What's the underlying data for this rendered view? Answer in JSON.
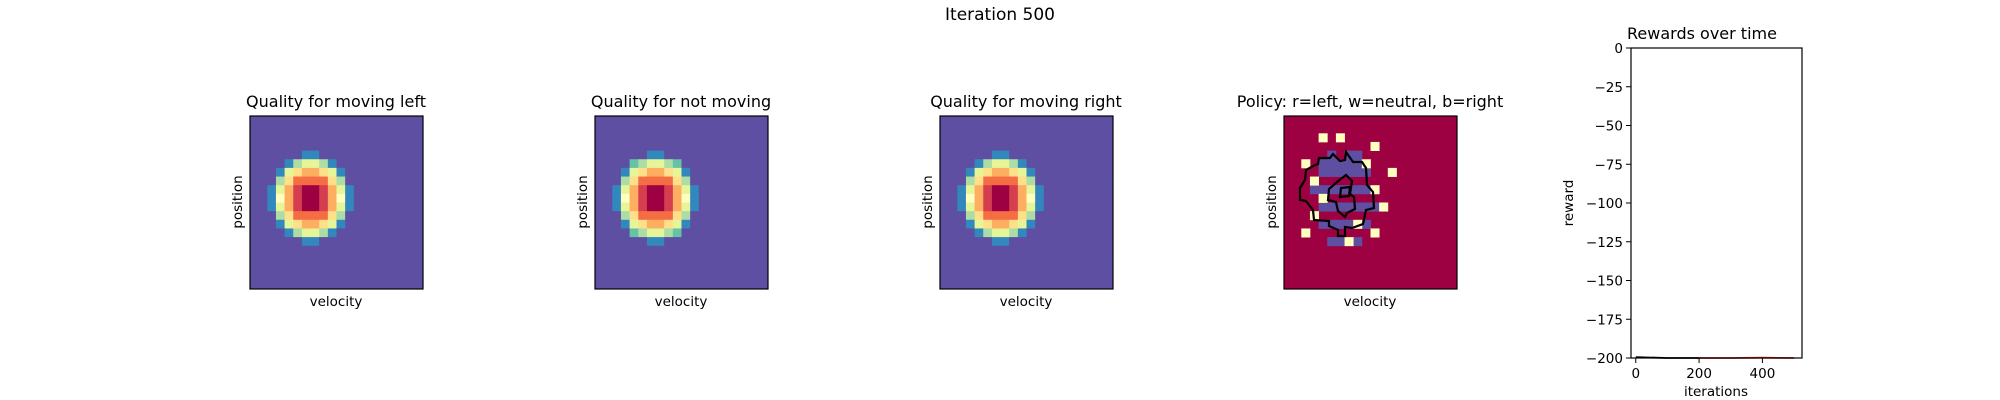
{
  "suptitle": "Iteration 500",
  "colormap": [
    "#5e4fa2",
    "#3288bd",
    "#66c2a5",
    "#abdda4",
    "#e6f598",
    "#ffffbf",
    "#fee08b",
    "#fdae61",
    "#f46d43",
    "#d53e4f",
    "#9e0142"
  ],
  "chart_data": [
    {
      "type": "heatmap",
      "title": "Quality for moving left",
      "xlabel": "velocity",
      "ylabel": "position",
      "grid_size": [
        20,
        20
      ],
      "blob": {
        "center": [
          6.5,
          9.0
        ],
        "radius": [
          4.8,
          5.2
        ],
        "peak": 1.0
      }
    },
    {
      "type": "heatmap",
      "title": "Quality for not moving",
      "xlabel": "velocity",
      "ylabel": "position",
      "grid_size": [
        20,
        20
      ],
      "blob": {
        "center": [
          6.5,
          9.0
        ],
        "radius": [
          4.8,
          5.3
        ],
        "peak": 1.0
      }
    },
    {
      "type": "heatmap",
      "title": "Quality for moving right",
      "xlabel": "velocity",
      "ylabel": "position",
      "grid_size": [
        20,
        20
      ],
      "blob": {
        "center": [
          6.5,
          9.0
        ],
        "radius": [
          4.8,
          5.2
        ],
        "peak": 1.0
      }
    },
    {
      "type": "heatmap",
      "title": "Policy: r=left, w=neutral, b=right",
      "xlabel": "velocity",
      "ylabel": "position",
      "grid_size": [
        20,
        20
      ],
      "background_class": "left",
      "class_colors": {
        "left": "#9e0142",
        "neutral": "#ffffbf",
        "right": "#5e4fa2"
      },
      "cells": {
        "neutral": [
          [
            4,
            2
          ],
          [
            6,
            2
          ],
          [
            10,
            3
          ],
          [
            2,
            5
          ],
          [
            9,
            5
          ],
          [
            12,
            6
          ],
          [
            3,
            7
          ],
          [
            10,
            8
          ],
          [
            4,
            9
          ],
          [
            11,
            10
          ],
          [
            3,
            11
          ],
          [
            8,
            12
          ],
          [
            10,
            13
          ],
          [
            2,
            13
          ],
          [
            7,
            14
          ]
        ],
        "right": [
          [
            5,
            4
          ],
          [
            7,
            4
          ],
          [
            8,
            4
          ],
          [
            4,
            5
          ],
          [
            5,
            5
          ],
          [
            6,
            5
          ],
          [
            7,
            5
          ],
          [
            8,
            5
          ],
          [
            4,
            6
          ],
          [
            5,
            6
          ],
          [
            6,
            6
          ],
          [
            7,
            6
          ],
          [
            8,
            6
          ],
          [
            9,
            6
          ],
          [
            3,
            8
          ],
          [
            4,
            8
          ],
          [
            5,
            8
          ],
          [
            6,
            8
          ],
          [
            7,
            8
          ],
          [
            8,
            8
          ],
          [
            9,
            8
          ],
          [
            4,
            10
          ],
          [
            5,
            10
          ],
          [
            6,
            10
          ],
          [
            7,
            10
          ],
          [
            8,
            10
          ],
          [
            9,
            10
          ],
          [
            10,
            10
          ],
          [
            4,
            12
          ],
          [
            5,
            12
          ],
          [
            6,
            12
          ],
          [
            7,
            12
          ],
          [
            9,
            12
          ],
          [
            5,
            14
          ],
          [
            6,
            14
          ],
          [
            8,
            14
          ]
        ]
      }
    },
    {
      "type": "line",
      "title": "Rewards over time",
      "xlabel": "iterations",
      "ylabel": "reward",
      "xlim": [
        -15,
        525
      ],
      "ylim": [
        -200,
        0
      ],
      "xticks": [
        0,
        200,
        400
      ],
      "yticks": [
        0,
        -25,
        -50,
        -75,
        -100,
        -125,
        -150,
        -175,
        -200
      ],
      "series": [
        {
          "color": "#000000",
          "x": [
            0,
            100,
            200
          ],
          "y": [
            -199.5,
            -200,
            -200
          ]
        },
        {
          "color": "#d62728",
          "x": [
            200,
            300,
            400,
            500
          ],
          "y": [
            -200,
            -200,
            -199.8,
            -200
          ]
        }
      ]
    }
  ]
}
